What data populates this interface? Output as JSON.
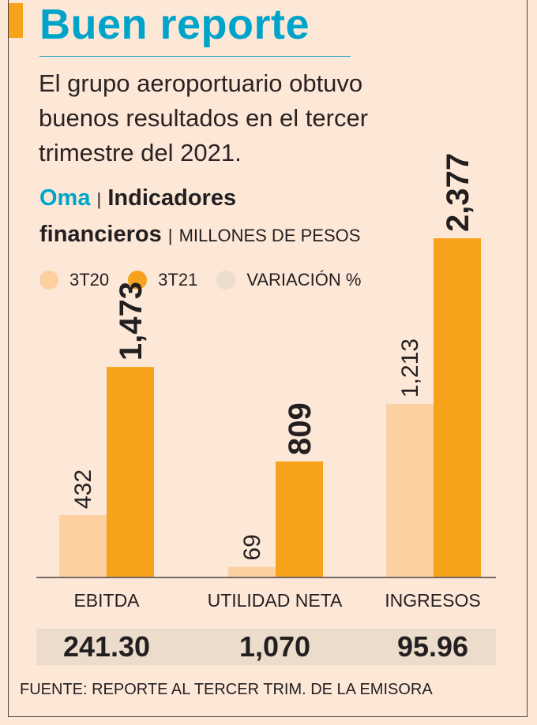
{
  "title": "Buen reporte",
  "description": "El grupo aeroportuario obtuvo buenos resultados en el tercer trimestre del 2021.",
  "subtitle": {
    "company": "Oma",
    "separator": "|",
    "heading_1": "Indicadores",
    "heading_2": "financieros",
    "units": "MILLONES DE PESOS"
  },
  "colors": {
    "accent": "#00a4c9",
    "s3T20": "#fcd0a1",
    "s3T21": "#f7a21b",
    "variation": "#ecdccc"
  },
  "chart_data": {
    "type": "bar",
    "categories": [
      "EBITDA",
      "UTILIDAD NETA",
      "INGRESOS"
    ],
    "series": [
      {
        "name": "3T20",
        "values": [
          432,
          69,
          1213
        ],
        "labels": [
          "432",
          "69",
          "1,213"
        ]
      },
      {
        "name": "3T21",
        "values": [
          1473,
          809,
          2377
        ],
        "labels": [
          "1,473",
          "809",
          "2,377"
        ]
      }
    ],
    "variation_label": "VARIACIÓN %",
    "variation": [
      "241.30",
      "1,070",
      "95.96"
    ],
    "ylim": [
      0,
      2377
    ]
  },
  "source": "FUENTE: REPORTE AL TERCER TRIM. DE LA EMISORA"
}
